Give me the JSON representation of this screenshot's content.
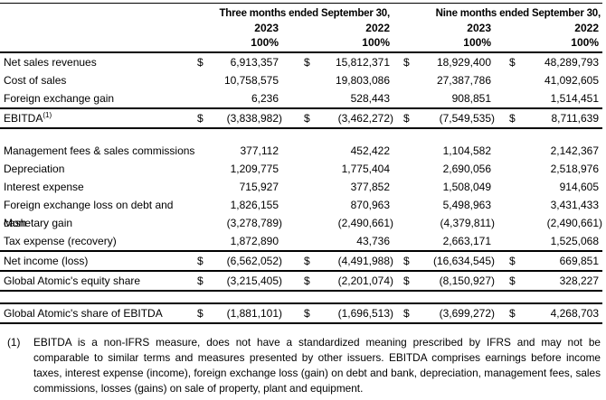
{
  "table": {
    "header": {
      "col_group_1": "Three months ended September 30,",
      "col_group_2": "Nine months ended September 30,",
      "years": [
        "2023",
        "2022",
        "2023",
        "2022"
      ],
      "percents": [
        "100%",
        "100%",
        "100%",
        "100%"
      ]
    },
    "rows": [
      {
        "label": "Net sales revenues",
        "c1cur": "$",
        "c1": "6,913,357",
        "c2cur": "$",
        "c2": "15,812,371",
        "c3cur": "$",
        "c3": "18,929,400",
        "c4cur": "$",
        "c4": "48,289,793"
      },
      {
        "label": "Cost of sales",
        "c1": "10,758,575",
        "c2": "19,803,086",
        "c3": "27,387,786",
        "c4": "41,092,605"
      },
      {
        "label": "Foreign exchange gain",
        "c1": "6,236",
        "c2": "528,443",
        "c3": "908,851",
        "c4": "1,514,451"
      },
      {
        "label": "EBITDA",
        "sup": "(1)",
        "c1cur": "$",
        "c1": "(3,838,982)",
        "c2cur": "$",
        "c2": "(3,462,272)",
        "c3cur": "$",
        "c3": "(7,549,535)",
        "c4cur": "$",
        "c4": "8,711,639"
      },
      {
        "label": "Management fees & sales commissions",
        "c1": "377,112",
        "c2": "452,422",
        "c3": "1,104,582",
        "c4": "2,142,367"
      },
      {
        "label": "Depreciation",
        "c1": "1,209,775",
        "c2": "1,775,404",
        "c3": "2,690,056",
        "c4": "2,518,976"
      },
      {
        "label": "Interest expense",
        "c1": "715,927",
        "c2": "377,852",
        "c3": "1,508,049",
        "c4": "914,605"
      },
      {
        "label": "Foreign exchange loss on debt and cash",
        "c1": "1,826,155",
        "c2": "870,963",
        "c3": "5,498,963",
        "c4": "3,431,433"
      },
      {
        "label": "Monetary gain",
        "c1": "(3,278,789)",
        "c2": "(2,490,661)",
        "c3": "(4,379,811)",
        "c4": "(2,490,661)"
      },
      {
        "label": "Tax expense (recovery)",
        "c1": "1,872,890",
        "c2": "43,736",
        "c3": "2,663,171",
        "c4": "1,525,068"
      },
      {
        "label": "Net income (loss)",
        "c1cur": "$",
        "c1": "(6,562,052)",
        "c2cur": "$",
        "c2": "(4,491,988)",
        "c3cur": "$",
        "c3": "(16,634,545)",
        "c4cur": "$",
        "c4": "669,851"
      },
      {
        "label": "Global Atomic's equity share",
        "c1cur": "$",
        "c1": "(3,215,405)",
        "c2cur": "$",
        "c2": "(2,201,074)",
        "c3cur": "$",
        "c3": "(8,150,927)",
        "c4cur": "$",
        "c4": "328,227"
      },
      {
        "label": "Global Atomic's share of EBITDA",
        "c1cur": "$",
        "c1": "(1,881,101)",
        "c2cur": "$",
        "c2": "(1,696,513)",
        "c3cur": "$",
        "c3": "(3,699,272)",
        "c4cur": "$",
        "c4": "4,268,703"
      }
    ]
  },
  "footnote": {
    "marker": "(1)",
    "text": "EBITDA is a non-IFRS measure, does not have a standardized meaning prescribed by IFRS and may not be comparable to similar terms and measures presented by other issuers. EBITDA comprises earnings before income taxes, interest expense (income), foreign exchange loss (gain) on debt and bank, depreciation, management fees, sales commissions, losses (gains) on sale of property, plant and equipment."
  }
}
